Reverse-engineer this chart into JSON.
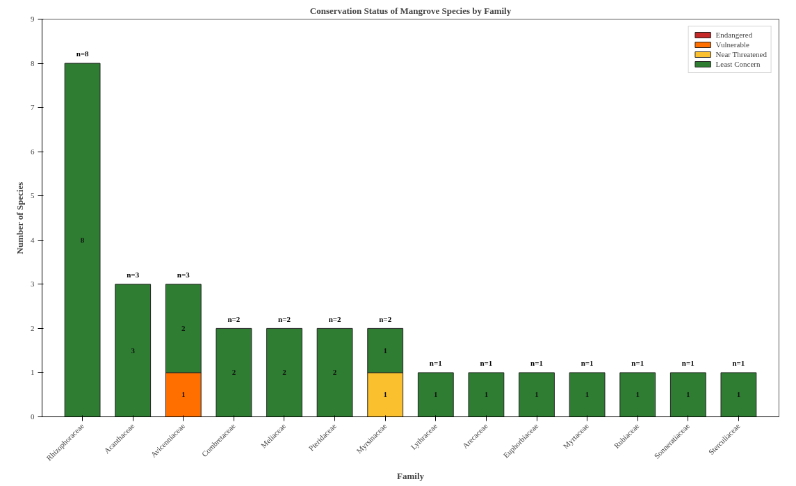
{
  "chart_data": {
    "type": "bar",
    "title": "Conservation Status of Mangrove Species by Family",
    "xlabel": "Family",
    "ylabel": "Number of Species",
    "categories": [
      "Rhizophoraceae",
      "Acanthaceae",
      "Avicenniaceae",
      "Combretaceae",
      "Meliaceae",
      "Pteridaceae",
      "Myrsinaceae",
      "Lythraceae",
      "Arecaceae",
      "Euphorbiaceae",
      "Myrtaceae",
      "Rubiaceae",
      "Sonneratiaceae",
      "Sterculiaceae"
    ],
    "series": [
      {
        "name": "Endangered",
        "color": "#c62828",
        "values": [
          null,
          null,
          null,
          null,
          null,
          null,
          null,
          null,
          null,
          null,
          null,
          null,
          null,
          null
        ]
      },
      {
        "name": "Vulnerable",
        "color": "#ff6f00",
        "values": [
          null,
          null,
          1,
          null,
          null,
          null,
          null,
          null,
          null,
          null,
          null,
          null,
          null,
          null
        ]
      },
      {
        "name": "Near Threatened",
        "color": "#fbc02d",
        "values": [
          null,
          null,
          null,
          null,
          null,
          null,
          1,
          null,
          null,
          null,
          null,
          null,
          null,
          null
        ]
      },
      {
        "name": "Least Concern",
        "color": "#2e7d32",
        "values": [
          8,
          3,
          2,
          2,
          2,
          2,
          1,
          1,
          1,
          1,
          1,
          1,
          1,
          1
        ]
      }
    ],
    "stacked": true,
    "data_labels": true,
    "totals": [
      "n=8",
      "n=3",
      "n=3",
      "n=2",
      "n=2",
      "n=2",
      "n=2",
      "n=1",
      "n=1",
      "n=1",
      "n=1",
      "n=1",
      "n=1",
      "n=1"
    ],
    "ylim": [
      0,
      9
    ],
    "yticks": [
      0,
      1,
      2,
      3,
      4,
      5,
      6,
      7,
      8,
      9
    ],
    "grid": false,
    "legend": "top right"
  }
}
